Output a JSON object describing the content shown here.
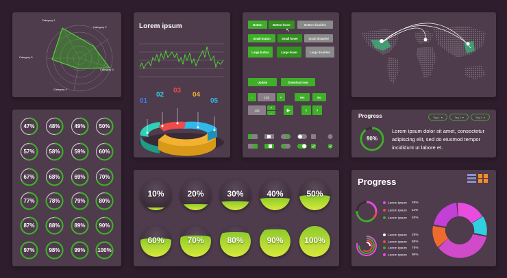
{
  "radar": {
    "categories": [
      "Category 1",
      "Category 2",
      "Category 3",
      "Category 4",
      "Category 5"
    ]
  },
  "lorem": {
    "title": "Lorem ipsum",
    "steps": [
      {
        "num": "01",
        "color": "#3d7ee8"
      },
      {
        "num": "02",
        "color": "#2fd0e0"
      },
      {
        "num": "03",
        "color": "#ef4b4b"
      },
      {
        "num": "04",
        "color": "#f2b230"
      },
      {
        "num": "05",
        "color": "#2fb8e8"
      }
    ]
  },
  "buttons": {
    "button": "Button",
    "button_hover": "Button hover",
    "button_disabled": "Button disabled",
    "small_button": "Small button",
    "small_hover": "Small hover",
    "small_disabled": "Small disabled",
    "large_button": "Large button",
    "large_hover": "Large hover",
    "large_disabled": "Large disabled",
    "update": "Update",
    "download": "Download now",
    "minus": "-",
    "stepper_value": "125",
    "plus": "+",
    "yes": "Yes",
    "no": "No",
    "stepper2_value": "125",
    "plus2": "+",
    "minus2": "-"
  },
  "circles": {
    "values": [
      "47%",
      "48%",
      "49%",
      "50%",
      "57%",
      "58%",
      "59%",
      "60%",
      "67%",
      "68%",
      "69%",
      "70%",
      "77%",
      "78%",
      "79%",
      "80%",
      "87%",
      "88%",
      "89%",
      "90%",
      "97%",
      "98%",
      "99%",
      "100%"
    ]
  },
  "progress1": {
    "title": "Progress",
    "percent": "90%",
    "text": "Lorem ipsum dolor sit amet, consectetur adipiscing elit, sed do eiusmod tempor incididunt ut labore et.",
    "tags": [
      "Tag 1",
      "Tag 2",
      "Tag 3"
    ]
  },
  "spheres": {
    "values": [
      "10%",
      "20%",
      "30%",
      "40%",
      "50%",
      "60%",
      "70%",
      "80%",
      "90%",
      "100%"
    ]
  },
  "progress2": {
    "title": "Progress",
    "legend1": [
      {
        "label": "Lorem ipsum",
        "value": "25%",
        "color": "#e84de0"
      },
      {
        "label": "Lorem ipsum",
        "value": "11%",
        "color": "#ef4b4b"
      },
      {
        "label": "Lorem ipsum",
        "value": "40%",
        "color": "#3fae29"
      }
    ],
    "legend2": [
      {
        "label": "Lorem ipsum",
        "value": "25%",
        "color": "#ffffff"
      },
      {
        "label": "Lorem ipsum",
        "value": "60%",
        "color": "#ef4b4b"
      },
      {
        "label": "Lorem ipsum",
        "value": "75%",
        "color": "#3fae29"
      },
      {
        "label": "Lorem ipsum",
        "value": "80%",
        "color": "#e84de0"
      }
    ]
  },
  "colors": {
    "accent": "#3fae29",
    "background": "#2e1d2c",
    "panel": "#4e3b4c"
  }
}
